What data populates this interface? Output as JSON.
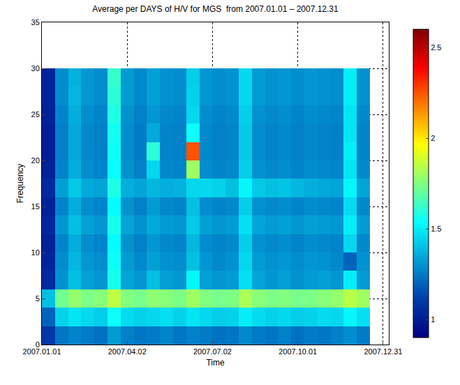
{
  "chart_data": {
    "type": "heatmap",
    "title": "Average per DAYS of H/V for MGS  from 2007.01.01 – 2007.12.31",
    "x_label": "Time",
    "y_label": "Frequency",
    "color": "Jet",
    "grid": true,
    "x": [
      "2007-01-08",
      "2007-01-22",
      "2007-02-05",
      "2007-02-19",
      "2007-03-05",
      "2007-03-19",
      "2007-04-02",
      "2007-04-16",
      "2007-04-30",
      "2007-05-14",
      "2007-05-28",
      "2007-06-11",
      "2007-06-25",
      "2007-07-09",
      "2007-07-23",
      "2007-08-06",
      "2007-08-20",
      "2007-09-03",
      "2007-09-17",
      "2007-10-01",
      "2007-10-15",
      "2007-10-29",
      "2007-11-12",
      "2007-11-26",
      "2007-12-10"
    ],
    "y": [
      1,
      3,
      5,
      7,
      9,
      11,
      13,
      15,
      17,
      19,
      21,
      23,
      25,
      27,
      29
    ],
    "z": [
      [
        1.1,
        1.24,
        1.27,
        1.25,
        1.23,
        1.32,
        1.26,
        1.24,
        1.25,
        1.27,
        1.24,
        1.26,
        1.25,
        1.23,
        1.24,
        1.28,
        1.25,
        1.24,
        1.26,
        1.23,
        1.25,
        1.24,
        1.26,
        1.29,
        1.25
      ],
      [
        1.2,
        1.44,
        1.48,
        1.45,
        1.43,
        1.55,
        1.46,
        1.44,
        1.45,
        1.47,
        1.44,
        1.48,
        1.45,
        1.43,
        1.44,
        1.5,
        1.46,
        1.44,
        1.45,
        1.43,
        1.44,
        1.46,
        1.45,
        1.52,
        1.47
      ],
      [
        1.4,
        1.72,
        1.78,
        1.74,
        1.76,
        1.85,
        1.75,
        1.73,
        1.77,
        1.76,
        1.74,
        1.8,
        1.75,
        1.73,
        1.74,
        1.82,
        1.76,
        1.74,
        1.75,
        1.73,
        1.74,
        1.76,
        1.78,
        1.84,
        1.8
      ],
      [
        1.05,
        1.3,
        1.4,
        1.33,
        1.31,
        1.57,
        1.34,
        1.31,
        1.4,
        1.33,
        1.31,
        1.52,
        1.33,
        1.31,
        1.32,
        1.47,
        1.34,
        1.31,
        1.33,
        1.3,
        1.32,
        1.33,
        1.31,
        1.5,
        1.32
      ],
      [
        1.03,
        1.29,
        1.38,
        1.31,
        1.29,
        1.55,
        1.32,
        1.28,
        1.33,
        1.3,
        1.29,
        1.4,
        1.31,
        1.28,
        1.3,
        1.45,
        1.32,
        1.3,
        1.31,
        1.29,
        1.31,
        1.3,
        1.28,
        1.2,
        1.3
      ],
      [
        1.02,
        1.27,
        1.36,
        1.29,
        1.27,
        1.53,
        1.3,
        1.26,
        1.31,
        1.28,
        1.27,
        1.38,
        1.29,
        1.27,
        1.28,
        1.43,
        1.3,
        1.28,
        1.29,
        1.27,
        1.29,
        1.28,
        1.27,
        1.45,
        1.28
      ],
      [
        1.04,
        1.31,
        1.4,
        1.33,
        1.31,
        1.57,
        1.34,
        1.3,
        1.35,
        1.32,
        1.31,
        1.42,
        1.33,
        1.31,
        1.32,
        1.47,
        1.34,
        1.32,
        1.33,
        1.31,
        1.33,
        1.32,
        1.31,
        1.5,
        1.32
      ],
      [
        1.02,
        1.27,
        1.36,
        1.29,
        1.27,
        1.53,
        1.3,
        1.26,
        1.32,
        1.28,
        1.27,
        1.4,
        1.29,
        1.27,
        1.28,
        1.43,
        1.3,
        1.28,
        1.29,
        1.27,
        1.29,
        1.28,
        1.27,
        1.46,
        1.28
      ],
      [
        1.05,
        1.33,
        1.42,
        1.35,
        1.34,
        1.58,
        1.36,
        1.34,
        1.38,
        1.36,
        1.37,
        1.45,
        1.45,
        1.44,
        1.4,
        1.52,
        1.42,
        1.4,
        1.41,
        1.38,
        1.36,
        1.35,
        1.34,
        1.52,
        1.34
      ],
      [
        1.02,
        1.27,
        1.36,
        1.29,
        1.27,
        1.54,
        1.3,
        1.26,
        1.45,
        1.28,
        1.27,
        1.8,
        1.29,
        1.27,
        1.28,
        1.43,
        1.3,
        1.28,
        1.29,
        1.27,
        1.29,
        1.28,
        1.27,
        1.48,
        1.28
      ],
      [
        1.01,
        1.26,
        1.35,
        1.28,
        1.26,
        1.55,
        1.29,
        1.25,
        1.6,
        1.27,
        1.26,
        2.25,
        1.28,
        1.26,
        1.27,
        1.42,
        1.29,
        1.27,
        1.28,
        1.26,
        1.28,
        1.27,
        1.26,
        1.5,
        1.27
      ],
      [
        1.01,
        1.26,
        1.35,
        1.28,
        1.26,
        1.56,
        1.29,
        1.25,
        1.35,
        1.27,
        1.26,
        1.55,
        1.28,
        1.26,
        1.27,
        1.42,
        1.29,
        1.27,
        1.28,
        1.26,
        1.28,
        1.27,
        1.26,
        1.48,
        1.27
      ],
      [
        1.02,
        1.27,
        1.36,
        1.29,
        1.27,
        1.58,
        1.3,
        1.26,
        1.31,
        1.28,
        1.27,
        1.45,
        1.29,
        1.27,
        1.28,
        1.43,
        1.3,
        1.28,
        1.29,
        1.27,
        1.29,
        1.28,
        1.27,
        1.48,
        1.28
      ],
      [
        1.03,
        1.29,
        1.38,
        1.31,
        1.29,
        1.6,
        1.32,
        1.28,
        1.33,
        1.3,
        1.29,
        1.44,
        1.31,
        1.29,
        1.3,
        1.45,
        1.32,
        1.3,
        1.31,
        1.29,
        1.31,
        1.3,
        1.29,
        1.5,
        1.3
      ],
      [
        1.03,
        1.29,
        1.37,
        1.31,
        1.29,
        1.62,
        1.32,
        1.28,
        1.33,
        1.3,
        1.29,
        1.43,
        1.31,
        1.29,
        1.3,
        1.45,
        1.32,
        1.3,
        1.31,
        1.29,
        1.31,
        1.3,
        1.29,
        1.5,
        1.3
      ]
    ],
    "xlim": [
      "2007-01-01",
      "2008-01-06"
    ],
    "xticks": [
      {
        "value": "2007-01-01",
        "label": "2007.01.01"
      },
      {
        "value": "2007-04-02",
        "label": "2007.04.02"
      },
      {
        "value": "2007-07-02",
        "label": "2007.07.02"
      },
      {
        "value": "2007-10-01",
        "label": "2007.10.01"
      },
      {
        "value": "2007-12-31",
        "label": "2007.12.31"
      }
    ],
    "ylim": [
      0,
      35
    ],
    "yticks": [
      0,
      5,
      10,
      15,
      20,
      25,
      30,
      35
    ],
    "clim": [
      0.9,
      2.6
    ],
    "cticks": [
      1,
      1.5,
      2,
      2.5
    ]
  }
}
